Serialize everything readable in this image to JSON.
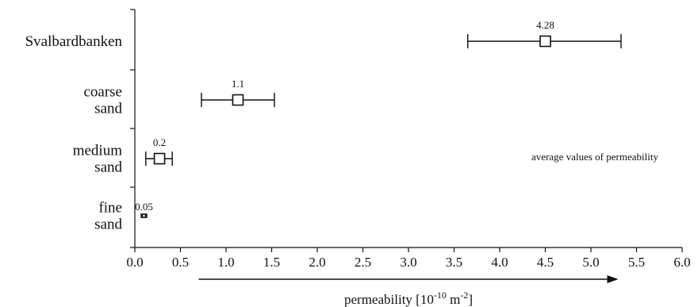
{
  "chart_data": {
    "type": "scatter",
    "title": "",
    "annotation": "average values of permeability",
    "xlabel": "permeability [10",
    "xlabel_exp1": "-10",
    "xlabel_mid": " m",
    "xlabel_exp2": "-2",
    "xlabel_end": "]",
    "xlim": [
      0,
      6
    ],
    "xticks": [
      "0.0",
      "0.5",
      "1.0",
      "1.5",
      "2.0",
      "2.5",
      "3.0",
      "3.5",
      "4.0",
      "4.5",
      "5.0",
      "5.5",
      "6.0"
    ],
    "arrow_range": [
      0.7,
      5.3
    ],
    "grid": false,
    "categories": [
      {
        "lines": [
          "Svalbardbanken"
        ],
        "value": 4.5,
        "low": 3.65,
        "high": 5.33,
        "label": "4.28"
      },
      {
        "lines": [
          "coarse",
          "sand"
        ],
        "value": 1.13,
        "low": 0.73,
        "high": 1.53,
        "label": "1.1"
      },
      {
        "lines": [
          "medium",
          "sand"
        ],
        "value": 0.27,
        "low": 0.12,
        "high": 0.41,
        "label": "0.2"
      },
      {
        "lines": [
          "fine",
          "sand"
        ],
        "value": 0.1,
        "low": 0.07,
        "high": 0.13,
        "label": "0.05"
      }
    ]
  }
}
